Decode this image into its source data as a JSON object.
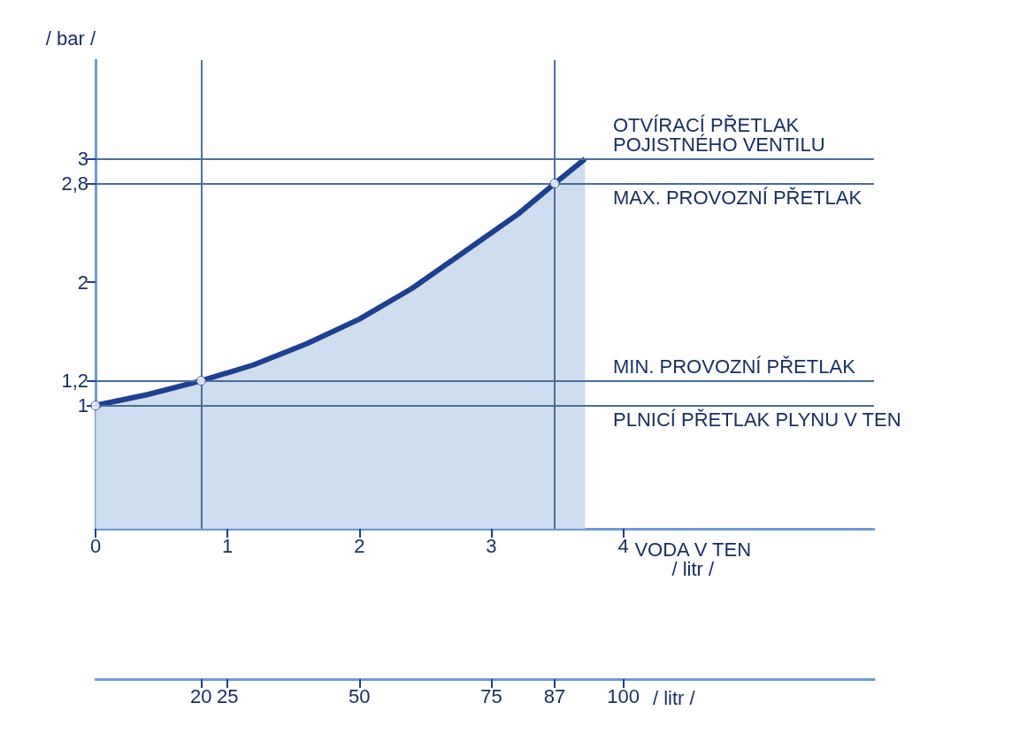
{
  "chart_data": {
    "type": "area",
    "xlabel": "VODA V TEN\n/ litr /",
    "x2label": "/ litr /",
    "ylabel": "/ bar /",
    "xlim": [
      0,
      5.9
    ],
    "xticks": [
      0,
      1,
      2,
      3,
      4
    ],
    "x2lim": [
      0,
      147.5
    ],
    "x2ticks": [
      20,
      25,
      50,
      75,
      87,
      100
    ],
    "ylim": [
      0,
      3.8
    ],
    "yticks": [
      1,
      {
        "value": 1.2,
        "label": "1,2"
      },
      2,
      {
        "value": 2.8,
        "label": "2,8"
      },
      3
    ],
    "grid": false,
    "series": [
      {
        "color": "#1f3f8f",
        "x": [
          0,
          0.4,
          0.8,
          1.2,
          1.6,
          2,
          2.4,
          2.8,
          3.2,
          3.48,
          3.71
        ],
        "values": [
          1,
          1.09,
          1.2,
          1.33,
          1.5,
          1.7,
          1.95,
          2.25,
          2.55,
          2.8,
          3
        ],
        "marker": "none"
      },
      {
        "type": "scatter",
        "color": "#ffffff",
        "x": [
          0,
          0.8,
          3.48
        ],
        "values": [
          1,
          1.2,
          2.8
        ],
        "marker": "circle"
      }
    ],
    "ref_lines": [
      {
        "axis": "y",
        "value": 3,
        "label": "OTVÍRACÍ PŘETLAK\nPOJISTNÉHO VENTILU",
        "color": "#4a6f99"
      },
      {
        "axis": "y",
        "value": 2.8,
        "label": "MAX. PROVOZNÍ PŘETLAK",
        "color": "#4a6f99"
      },
      {
        "axis": "y",
        "value": 1.2,
        "label": "MIN. PROVOZNÍ PŘETLAK",
        "color": "#4a6f99"
      },
      {
        "axis": "y",
        "value": 1,
        "label": "PLNICÍ PŘETLAK PLYNU V TEN",
        "color": "#4a6f99"
      },
      {
        "axis": "x",
        "value": 0.8,
        "color": "#4a6f99"
      },
      {
        "axis": "x",
        "value": 3.48,
        "color": "#4a6f99"
      }
    ]
  }
}
